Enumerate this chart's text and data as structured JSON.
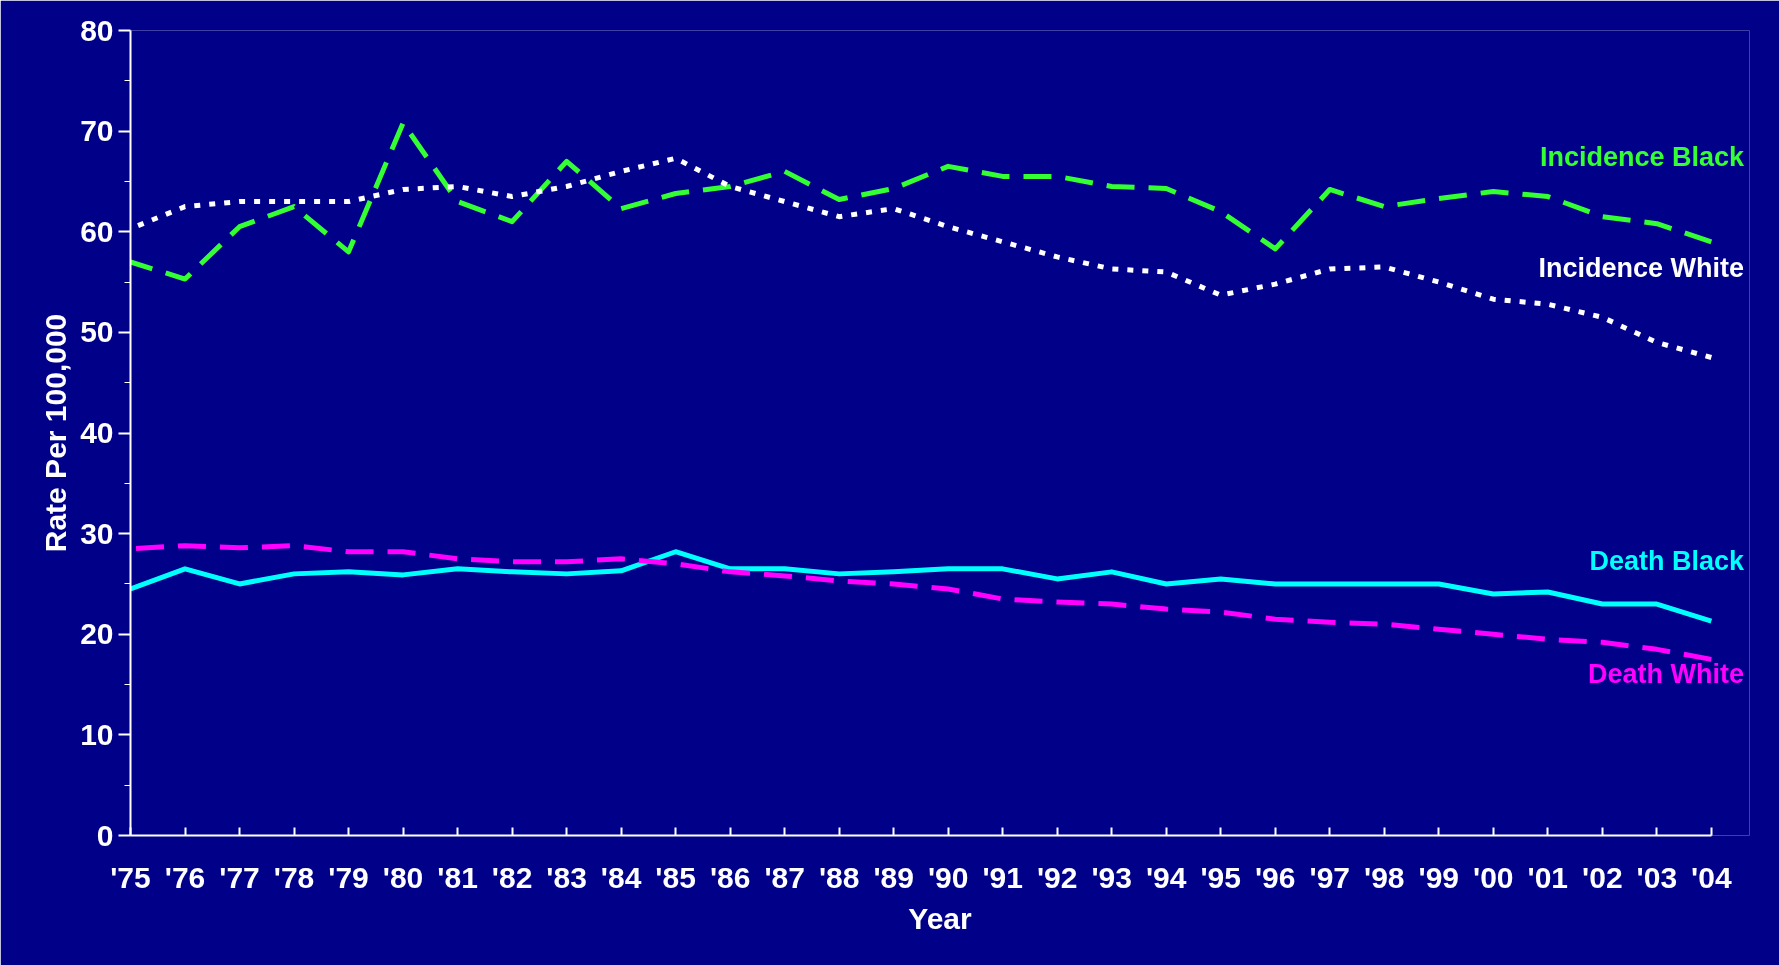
{
  "chart_data": {
    "type": "line",
    "xlabel": "Year",
    "ylabel": "Rate Per 100,000",
    "categories": [
      "'75",
      "'76",
      "'77",
      "'78",
      "'79",
      "'80",
      "'81",
      "'82",
      "'83",
      "'84",
      "'85",
      "'86",
      "'87",
      "'88",
      "'89",
      "'90",
      "'91",
      "'92",
      "'93",
      "'94",
      "'95",
      "'96",
      "'97",
      "'98",
      "'99",
      "'00",
      "'01",
      "'02",
      "'03",
      "'04"
    ],
    "ylim": [
      0,
      80
    ],
    "yticks": [
      0,
      10,
      20,
      30,
      40,
      50,
      60,
      70,
      80
    ],
    "grid": false,
    "legend": false,
    "series": [
      {
        "name": "Incidence Black",
        "color": "#33ff33",
        "line_style": "dashed",
        "values": [
          57,
          55.3,
          60.5,
          62.5,
          58,
          70.8,
          63,
          61,
          67,
          62.3,
          63.8,
          64.5,
          66,
          63.2,
          64.3,
          66.5,
          65.5,
          65.5,
          64.5,
          64.3,
          62,
          58.3,
          64.2,
          62.5,
          63.3,
          64,
          63.5,
          61.5,
          60.8,
          59
        ]
      },
      {
        "name": "Incidence White",
        "color": "#ffffff",
        "line_style": "dotted",
        "values": [
          60.3,
          62.5,
          63,
          63,
          63,
          64.2,
          64.5,
          63.5,
          64.5,
          66,
          67.3,
          64.5,
          63,
          61.5,
          62.3,
          60.5,
          59,
          57.5,
          56.3,
          56,
          53.7,
          54.8,
          56.3,
          56.5,
          55,
          53.3,
          52.8,
          51.5,
          49,
          47.5
        ]
      },
      {
        "name": "Death Black",
        "color": "#00ffff",
        "line_style": "solid",
        "values": [
          24.5,
          26.5,
          25,
          26,
          26.2,
          25.9,
          26.5,
          26.2,
          26,
          26.3,
          28.2,
          26.5,
          26.5,
          26,
          26.2,
          26.5,
          26.5,
          25.5,
          26.2,
          25,
          25.5,
          25,
          25,
          25,
          25,
          24,
          24.2,
          23,
          23,
          21.3
        ]
      },
      {
        "name": "Death White",
        "color": "#ff00ff",
        "line_style": "dashed",
        "values": [
          28.5,
          28.8,
          28.6,
          28.8,
          28.2,
          28.2,
          27.5,
          27.2,
          27.2,
          27.5,
          27,
          26.2,
          25.8,
          25.3,
          25,
          24.5,
          23.5,
          23.2,
          23,
          22.5,
          22.2,
          21.5,
          21.2,
          21,
          20.5,
          20,
          19.5,
          19.2,
          18.5,
          17.5
        ]
      }
    ]
  }
}
